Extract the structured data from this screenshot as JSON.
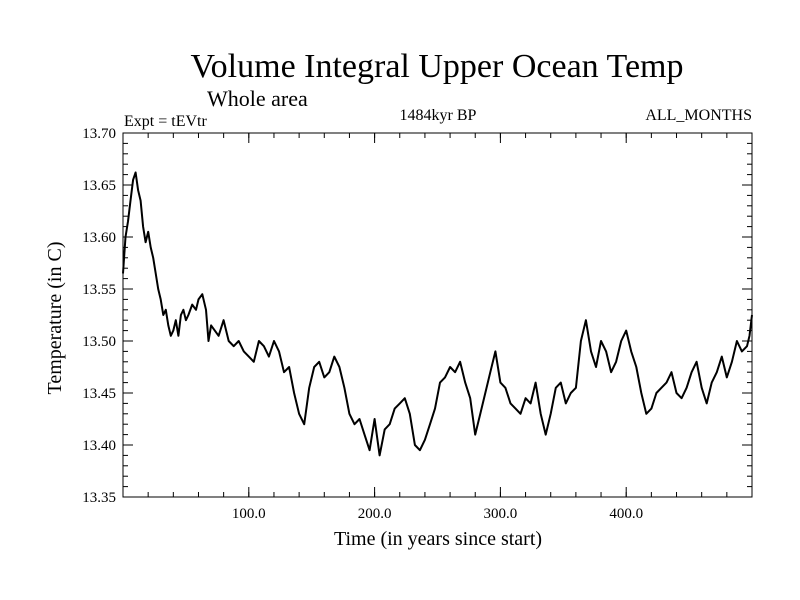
{
  "chart_data": {
    "type": "line",
    "title": "Volume Integral Upper Ocean Temp",
    "subtitle": "Whole area",
    "experiment": "Expt = tEVtr",
    "period": "1484kyr BP",
    "months": "ALL_MONTHS",
    "xlabel": "Time (in years since start)",
    "ylabel": "Temperature (in C)",
    "xlim": [
      0,
      500
    ],
    "ylim": [
      13.35,
      13.7
    ],
    "xticks": [
      100,
      200,
      300,
      400
    ],
    "xtick_labels": [
      "100.0",
      "200.0",
      "300.0",
      "400.0"
    ],
    "yticks": [
      13.35,
      13.4,
      13.45,
      13.5,
      13.55,
      13.6,
      13.65,
      13.7
    ],
    "ytick_labels": [
      "13.35",
      "13.40",
      "13.45",
      "13.50",
      "13.55",
      "13.60",
      "13.65",
      "13.70"
    ],
    "grid": false,
    "series": [
      {
        "name": "temperature",
        "x": [
          0,
          2,
          4,
          6,
          8,
          10,
          12,
          14,
          16,
          18,
          20,
          22,
          24,
          26,
          28,
          30,
          32,
          34,
          36,
          38,
          40,
          42,
          44,
          46,
          48,
          50,
          52,
          55,
          58,
          60,
          63,
          66,
          68,
          70,
          73,
          76,
          80,
          84,
          88,
          92,
          96,
          100,
          104,
          108,
          112,
          116,
          120,
          124,
          128,
          132,
          136,
          140,
          144,
          148,
          152,
          156,
          160,
          164,
          168,
          172,
          176,
          180,
          184,
          188,
          192,
          196,
          200,
          204,
          208,
          212,
          216,
          220,
          224,
          228,
          232,
          236,
          240,
          244,
          248,
          252,
          256,
          260,
          264,
          268,
          272,
          276,
          280,
          284,
          288,
          292,
          296,
          300,
          304,
          308,
          312,
          316,
          320,
          324,
          328,
          332,
          336,
          340,
          344,
          348,
          352,
          356,
          360,
          364,
          368,
          372,
          376,
          380,
          384,
          388,
          392,
          396,
          400,
          404,
          408,
          412,
          416,
          420,
          424,
          428,
          432,
          436,
          440,
          444,
          448,
          452,
          456,
          460,
          464,
          468,
          472,
          476,
          480,
          484,
          488,
          492,
          496,
          498,
          500
        ],
        "values": [
          13.565,
          13.6,
          13.615,
          13.635,
          13.655,
          13.662,
          13.645,
          13.635,
          13.61,
          13.595,
          13.605,
          13.59,
          13.58,
          13.565,
          13.55,
          13.54,
          13.525,
          13.53,
          13.515,
          13.505,
          13.51,
          13.52,
          13.505,
          13.525,
          13.53,
          13.52,
          13.525,
          13.535,
          13.53,
          13.54,
          13.545,
          13.53,
          13.5,
          13.515,
          13.51,
          13.505,
          13.52,
          13.5,
          13.495,
          13.5,
          13.49,
          13.485,
          13.48,
          13.5,
          13.495,
          13.485,
          13.5,
          13.49,
          13.47,
          13.475,
          13.45,
          13.43,
          13.42,
          13.455,
          13.475,
          13.48,
          13.465,
          13.47,
          13.485,
          13.475,
          13.455,
          13.43,
          13.42,
          13.425,
          13.41,
          13.395,
          13.425,
          13.39,
          13.415,
          13.42,
          13.435,
          13.44,
          13.445,
          13.43,
          13.4,
          13.395,
          13.405,
          13.42,
          13.435,
          13.46,
          13.465,
          13.475,
          13.47,
          13.48,
          13.46,
          13.445,
          13.41,
          13.43,
          13.45,
          13.47,
          13.49,
          13.46,
          13.455,
          13.44,
          13.435,
          13.43,
          13.445,
          13.44,
          13.46,
          13.43,
          13.41,
          13.43,
          13.455,
          13.46,
          13.44,
          13.45,
          13.455,
          13.5,
          13.52,
          13.49,
          13.475,
          13.5,
          13.49,
          13.47,
          13.48,
          13.5,
          13.51,
          13.49,
          13.475,
          13.45,
          13.43,
          13.435,
          13.45,
          13.455,
          13.46,
          13.47,
          13.45,
          13.445,
          13.455,
          13.47,
          13.48,
          13.455,
          13.44,
          13.46,
          13.47,
          13.485,
          13.465,
          13.48,
          13.5,
          13.49,
          13.495,
          13.505,
          13.525
        ]
      }
    ]
  }
}
